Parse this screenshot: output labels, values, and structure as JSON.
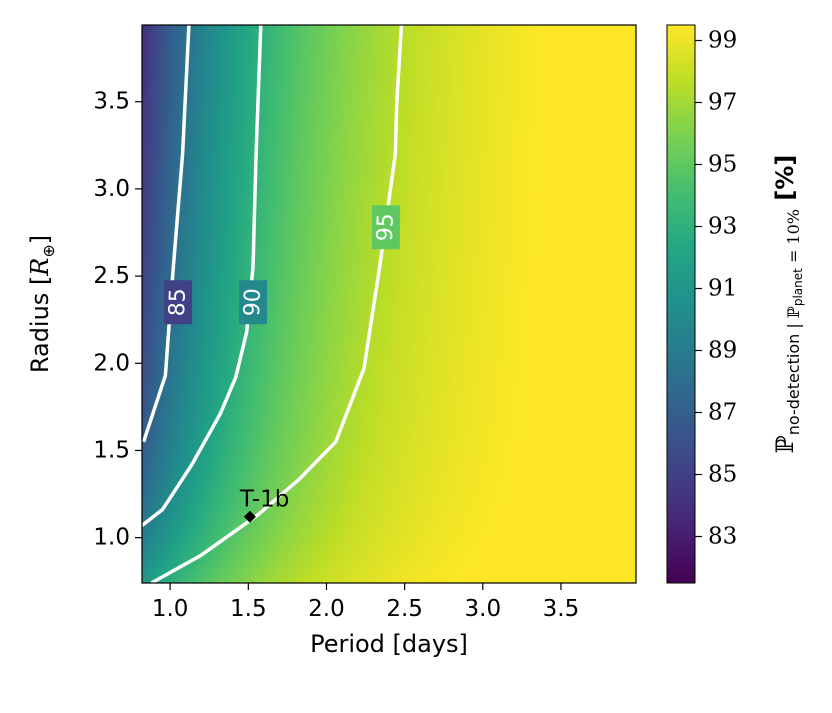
{
  "chart_data": {
    "type": "heatmap",
    "xlabel": "Period [days]",
    "ylabel": "Radius [",
    "ylabel_math": "R",
    "ylabel_sub": "⊕",
    "ylabel_end": "]",
    "xlim": [
      0.82,
      3.98
    ],
    "ylim": [
      0.74,
      3.94
    ],
    "xticks": [
      1.0,
      1.5,
      2.0,
      2.5,
      3.0,
      3.5
    ],
    "xtick_labels": [
      "1.0",
      "1.5",
      "2.0",
      "2.5",
      "3.0",
      "3.5"
    ],
    "yticks": [
      1.0,
      1.5,
      2.0,
      2.5,
      3.0,
      3.5
    ],
    "ytick_labels": [
      "1.0",
      "1.5",
      "2.0",
      "2.5",
      "3.0",
      "3.5"
    ],
    "colormap": "viridis",
    "colorbar": {
      "range": [
        81.5,
        99.5
      ],
      "ticks": [
        83,
        85,
        87,
        89,
        91,
        93,
        95,
        97,
        99
      ],
      "tick_labels": [
        "83",
        "85",
        "87",
        "89",
        "91",
        "93",
        "95",
        "97",
        "99"
      ],
      "label": {
        "symbol": "ℙ",
        "sub1": "no-detection",
        "bar": " | ",
        "sub2_symbol": "ℙ",
        "sub2": "planet",
        "cond": " = 10%",
        "unit": " [%]"
      }
    },
    "contours": [
      {
        "level": 85,
        "label": "85",
        "points": [
          [
            0.83,
            1.55
          ],
          [
            0.97,
            1.93
          ],
          [
            1.02,
            2.55
          ],
          [
            1.08,
            3.2
          ],
          [
            1.12,
            3.94
          ]
        ]
      },
      {
        "level": 90,
        "label": "90",
        "points": [
          [
            0.82,
            1.07
          ],
          [
            0.95,
            1.16
          ],
          [
            1.14,
            1.42
          ],
          [
            1.32,
            1.71
          ],
          [
            1.42,
            1.92
          ],
          [
            1.49,
            2.18
          ],
          [
            1.53,
            2.55
          ],
          [
            1.55,
            3.2
          ],
          [
            1.58,
            3.94
          ]
        ]
      },
      {
        "level": 95,
        "label": "95",
        "points": [
          [
            0.88,
            0.74
          ],
          [
            1.2,
            0.9
          ],
          [
            1.56,
            1.13
          ],
          [
            1.82,
            1.33
          ],
          [
            2.06,
            1.55
          ],
          [
            2.24,
            1.97
          ],
          [
            2.34,
            2.55
          ],
          [
            2.44,
            3.2
          ],
          [
            2.45,
            3.5
          ],
          [
            2.48,
            3.94
          ]
        ]
      }
    ],
    "annotations": [
      {
        "label": "T-1b",
        "x": 1.51,
        "y": 1.12,
        "marker": "diamond"
      }
    ]
  }
}
